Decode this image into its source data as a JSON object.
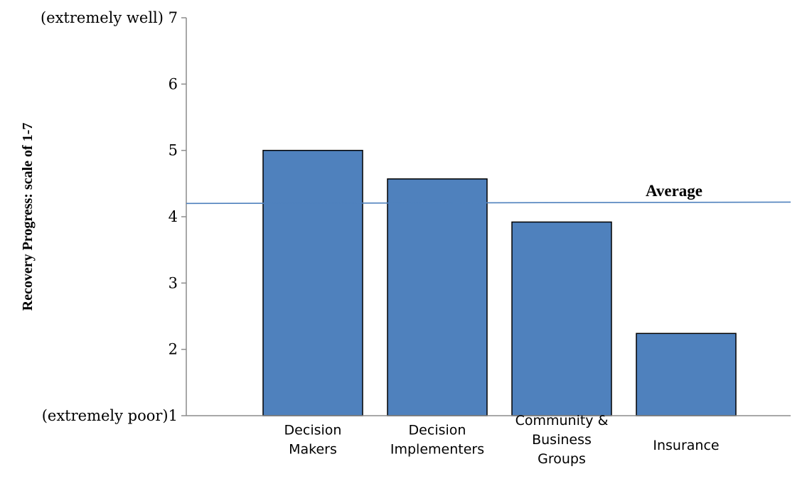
{
  "chart_data": {
    "type": "bar",
    "categories": [
      [
        "Decision",
        "Makers"
      ],
      [
        "Decision",
        "Implementers"
      ],
      [
        "Community &",
        "Business",
        "Groups"
      ],
      [
        "Insurance"
      ]
    ],
    "values": [
      5.0,
      4.57,
      3.92,
      2.24
    ],
    "ylabel": "Recovery Progress: scale of 1-7",
    "ylim": [
      1,
      7
    ],
    "yticks": [
      1,
      2,
      3,
      4,
      5,
      6,
      7
    ],
    "ytick_labels": [
      "(extremely poor)1",
      "2",
      "3",
      "4",
      "5",
      "6",
      "(extremely well) 7"
    ],
    "reference_line": {
      "label": "Average",
      "start_value": 4.2,
      "end_value": 4.22
    },
    "bar_color": "#4f81bd",
    "line_color": "#4f81bd",
    "grid": false,
    "legend": "none"
  }
}
